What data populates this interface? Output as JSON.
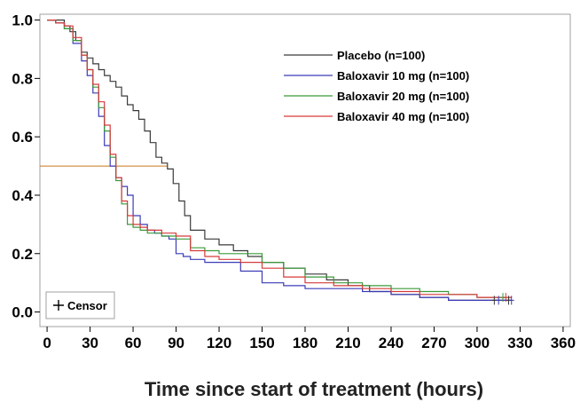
{
  "chart_data": {
    "type": "line",
    "step": true,
    "xlabel": "Time since start of treatment (hours)",
    "ylabel": "",
    "xlim": [
      -5,
      365
    ],
    "ylim": [
      -0.05,
      1.02
    ],
    "x_ticks": [
      0,
      30,
      60,
      90,
      120,
      150,
      180,
      210,
      240,
      270,
      300,
      330,
      360
    ],
    "y_ticks": [
      "0.0",
      "0.2",
      "0.4",
      "0.6",
      "0.8",
      "1.0"
    ],
    "y_tick_values": [
      0,
      0.2,
      0.4,
      0.6,
      0.8,
      1.0
    ],
    "median_reference_line": {
      "y": 0.5,
      "x_end": 84,
      "color": "#c8761a"
    },
    "grid": false,
    "legend_position": "top-right",
    "censor_legend_label": "Censor",
    "censor_marks_x": [
      312,
      315,
      318,
      320,
      322,
      324
    ],
    "series": [
      {
        "name": "Placebo (n=100)",
        "color": "#3a3a3a",
        "x": [
          0,
          8,
          12,
          16,
          20,
          24,
          28,
          32,
          36,
          40,
          44,
          48,
          52,
          56,
          60,
          64,
          68,
          72,
          76,
          80,
          84,
          88,
          92,
          96,
          100,
          110,
          120,
          130,
          140,
          150,
          165,
          180,
          195,
          210,
          225,
          240,
          260,
          280,
          300,
          324
        ],
        "y": [
          1.0,
          1.0,
          0.98,
          0.96,
          0.93,
          0.89,
          0.87,
          0.85,
          0.83,
          0.81,
          0.79,
          0.77,
          0.74,
          0.71,
          0.69,
          0.66,
          0.62,
          0.58,
          0.53,
          0.51,
          0.49,
          0.44,
          0.38,
          0.33,
          0.28,
          0.25,
          0.23,
          0.21,
          0.19,
          0.17,
          0.15,
          0.13,
          0.11,
          0.09,
          0.07,
          0.06,
          0.05,
          0.04,
          0.04,
          0.04
        ]
      },
      {
        "name": "Baloxavir 10 mg (n=100)",
        "color": "#3b3bb8",
        "x": [
          0,
          6,
          12,
          18,
          24,
          28,
          32,
          36,
          40,
          44,
          48,
          52,
          56,
          60,
          65,
          70,
          75,
          80,
          85,
          90,
          95,
          100,
          110,
          120,
          135,
          150,
          165,
          180,
          200,
          220,
          240,
          260,
          280,
          300,
          324
        ],
        "y": [
          1.0,
          0.99,
          0.97,
          0.92,
          0.86,
          0.81,
          0.75,
          0.67,
          0.57,
          0.5,
          0.46,
          0.43,
          0.4,
          0.33,
          0.3,
          0.28,
          0.27,
          0.26,
          0.25,
          0.2,
          0.19,
          0.18,
          0.17,
          0.17,
          0.14,
          0.1,
          0.09,
          0.08,
          0.08,
          0.07,
          0.06,
          0.05,
          0.04,
          0.04,
          0.04
        ]
      },
      {
        "name": "Baloxavir 20 mg (n=100)",
        "color": "#3a9a3a",
        "x": [
          0,
          6,
          12,
          18,
          24,
          28,
          32,
          36,
          40,
          44,
          48,
          52,
          56,
          60,
          65,
          70,
          80,
          90,
          100,
          110,
          120,
          135,
          150,
          165,
          180,
          200,
          220,
          240,
          260,
          280,
          300,
          324
        ],
        "y": [
          1.0,
          0.99,
          0.97,
          0.93,
          0.88,
          0.83,
          0.77,
          0.7,
          0.62,
          0.53,
          0.45,
          0.37,
          0.3,
          0.29,
          0.28,
          0.27,
          0.26,
          0.25,
          0.22,
          0.21,
          0.2,
          0.2,
          0.17,
          0.15,
          0.12,
          0.1,
          0.09,
          0.08,
          0.07,
          0.06,
          0.05,
          0.05
        ]
      },
      {
        "name": "Baloxavir 40 mg (n=100)",
        "color": "#d63a3a",
        "x": [
          0,
          6,
          12,
          18,
          24,
          28,
          32,
          36,
          40,
          44,
          48,
          52,
          56,
          60,
          65,
          70,
          80,
          90,
          100,
          110,
          120,
          135,
          150,
          165,
          180,
          200,
          220,
          240,
          260,
          280,
          300,
          324
        ],
        "y": [
          1.0,
          0.99,
          0.98,
          0.94,
          0.88,
          0.83,
          0.78,
          0.72,
          0.64,
          0.54,
          0.46,
          0.38,
          0.33,
          0.3,
          0.29,
          0.28,
          0.27,
          0.26,
          0.21,
          0.19,
          0.18,
          0.17,
          0.15,
          0.12,
          0.1,
          0.09,
          0.08,
          0.07,
          0.06,
          0.06,
          0.05,
          0.05
        ]
      }
    ]
  }
}
